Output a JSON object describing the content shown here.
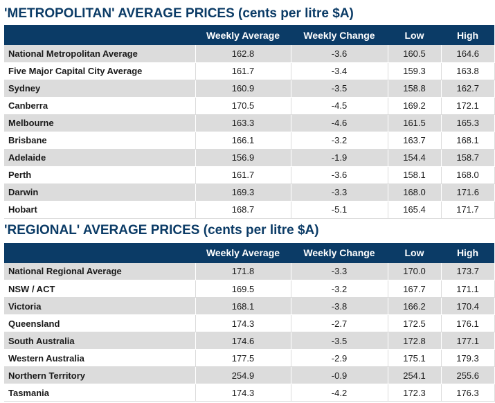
{
  "metro": {
    "title": "'METROPOLITAN' AVERAGE PRICES (cents per litre $A)",
    "headers": [
      "",
      "Weekly Average",
      "Weekly Change",
      "Low",
      "High"
    ],
    "rows": [
      {
        "name": "National Metropolitan Average",
        "weekly_average": "162.8",
        "weekly_change": "-3.6",
        "low": "160.5",
        "high": "164.6"
      },
      {
        "name": "Five Major Capital City Average",
        "weekly_average": "161.7",
        "weekly_change": "-3.4",
        "low": "159.3",
        "high": "163.8"
      },
      {
        "name": "Sydney",
        "weekly_average": "160.9",
        "weekly_change": "-3.5",
        "low": "158.8",
        "high": "162.7"
      },
      {
        "name": "Canberra",
        "weekly_average": "170.5",
        "weekly_change": "-4.5",
        "low": "169.2",
        "high": "172.1"
      },
      {
        "name": "Melbourne",
        "weekly_average": "163.3",
        "weekly_change": "-4.6",
        "low": "161.5",
        "high": "165.3"
      },
      {
        "name": "Brisbane",
        "weekly_average": "166.1",
        "weekly_change": "-3.2",
        "low": "163.7",
        "high": "168.1"
      },
      {
        "name": "Adelaide",
        "weekly_average": "156.9",
        "weekly_change": "-1.9",
        "low": "154.4",
        "high": "158.7"
      },
      {
        "name": "Perth",
        "weekly_average": "161.7",
        "weekly_change": "-3.6",
        "low": "158.1",
        "high": "168.0"
      },
      {
        "name": "Darwin",
        "weekly_average": "169.3",
        "weekly_change": "-3.3",
        "low": "168.0",
        "high": "171.6"
      },
      {
        "name": "Hobart",
        "weekly_average": "168.7",
        "weekly_change": "-5.1",
        "low": "165.4",
        "high": "171.7"
      }
    ]
  },
  "regional": {
    "title": "'REGIONAL' AVERAGE PRICES (cents per litre $A)",
    "headers": [
      "",
      "Weekly Average",
      "Weekly Change",
      "Low",
      "High"
    ],
    "rows": [
      {
        "name": "National Regional Average",
        "weekly_average": "171.8",
        "weekly_change": "-3.3",
        "low": "170.0",
        "high": "173.7"
      },
      {
        "name": "NSW / ACT",
        "weekly_average": "169.5",
        "weekly_change": "-3.2",
        "low": "167.7",
        "high": "171.1"
      },
      {
        "name": "Victoria",
        "weekly_average": "168.1",
        "weekly_change": "-3.8",
        "low": "166.2",
        "high": "170.4"
      },
      {
        "name": "Queensland",
        "weekly_average": "174.3",
        "weekly_change": "-2.7",
        "low": "172.5",
        "high": "176.1"
      },
      {
        "name": "South Australia",
        "weekly_average": "174.6",
        "weekly_change": "-3.5",
        "low": "172.8",
        "high": "177.1"
      },
      {
        "name": "Western Australia",
        "weekly_average": "177.5",
        "weekly_change": "-2.9",
        "low": "175.1",
        "high": "179.3"
      },
      {
        "name": "Northern Territory",
        "weekly_average": "254.9",
        "weekly_change": "-0.9",
        "low": "254.1",
        "high": "255.6"
      },
      {
        "name": "Tasmania",
        "weekly_average": "174.3",
        "weekly_change": "-4.2",
        "low": "172.3",
        "high": "176.3"
      }
    ]
  },
  "colors": {
    "header_bg": "#0b3b66",
    "title_text": "#0b3b66",
    "row_shade": "#dcdcdc"
  }
}
